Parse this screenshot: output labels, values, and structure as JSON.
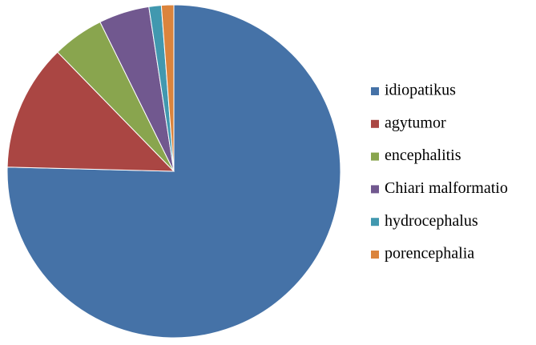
{
  "chart_data": {
    "type": "pie",
    "categories": [
      "idiopatikus",
      "agytumor",
      "encephalitis",
      "Chiari malformatio",
      "hydrocephalus",
      "porencephalia"
    ],
    "values": [
      75.4,
      12.3,
      5.0,
      4.9,
      1.2,
      1.2
    ],
    "colors": [
      "#4572a7",
      "#aa4643",
      "#89a54e",
      "#71588f",
      "#4198af",
      "#db843d"
    ],
    "legend": "right"
  }
}
